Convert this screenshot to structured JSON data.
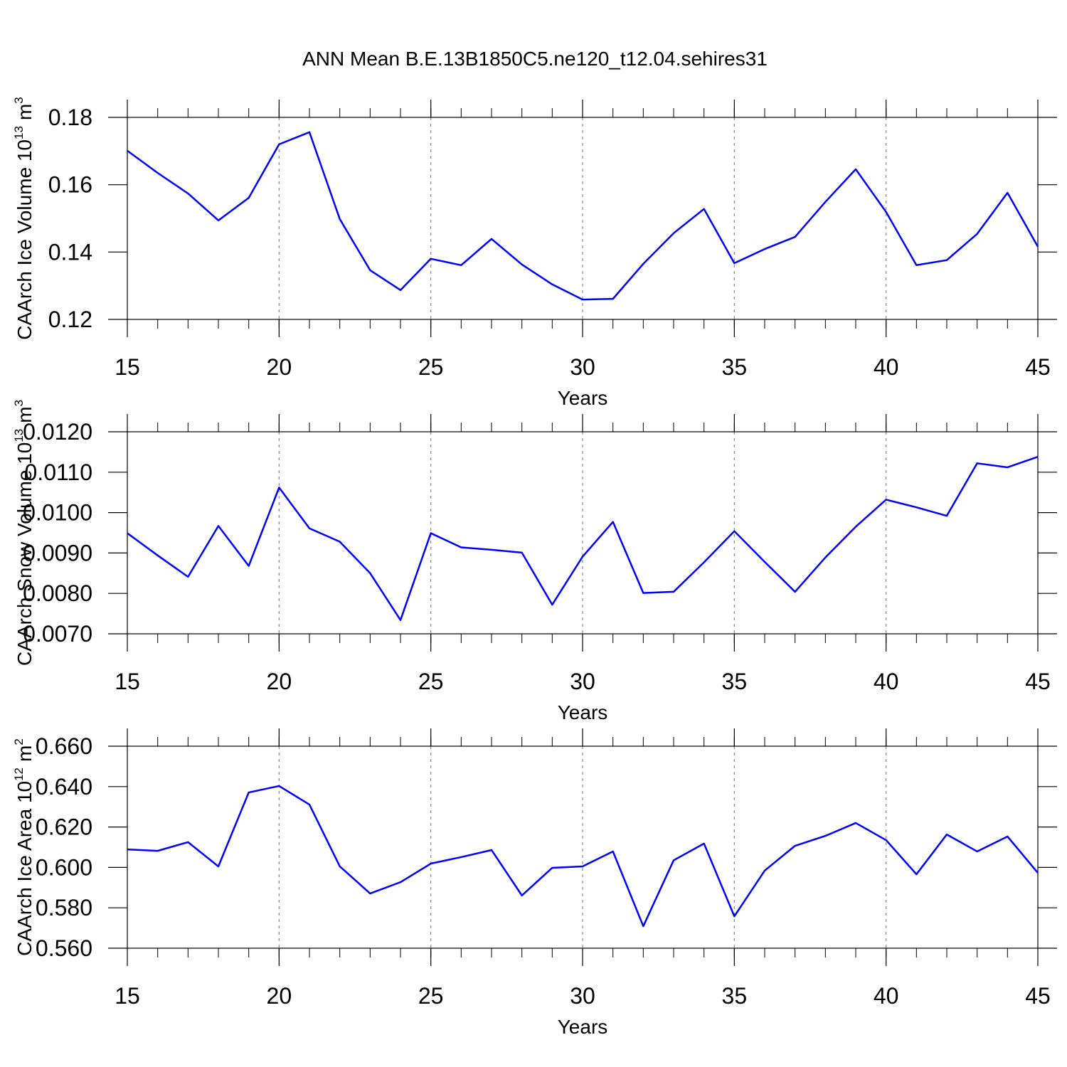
{
  "chart_data": [
    {
      "type": "line",
      "title": "ANN Mean B.E.13B1850C5.ne120_t12.04.sehires31",
      "ylabel": "CAArch Ice Volume 10",
      "ylabel_exp": "13",
      "ylabel_unit": "m",
      "ylabel_unit_exp": "3",
      "xlabel": "Years",
      "x": [
        15,
        16,
        17,
        18,
        19,
        20,
        21,
        22,
        23,
        24,
        25,
        26,
        27,
        28,
        29,
        30,
        31,
        32,
        33,
        34,
        35,
        36,
        37,
        38,
        39,
        40,
        41,
        42,
        43,
        44,
        45
      ],
      "series": [
        {
          "color": "#0000ff",
          "values": [
            0.1701,
            0.1635,
            0.1574,
            0.1494,
            0.1561,
            0.172,
            0.1756,
            0.1498,
            0.1346,
            0.1287,
            0.138,
            0.1361,
            0.1439,
            0.1363,
            0.1304,
            0.1259,
            0.1261,
            0.1365,
            0.1456,
            0.1528,
            0.1367,
            0.1409,
            0.1445,
            0.1549,
            0.1646,
            0.1519,
            0.1361,
            0.1376,
            0.1454,
            0.1576,
            0.1416
          ]
        }
      ],
      "xlim": [
        15,
        45
      ],
      "xticks": [
        15,
        20,
        25,
        30,
        35,
        40,
        45
      ],
      "ylim": [
        0.12,
        0.18
      ],
      "yticks": [
        0.12,
        0.14,
        0.16,
        0.18
      ],
      "grid": "x-dashed"
    },
    {
      "type": "line",
      "ylabel": "CAArch Snow Volume 10",
      "ylabel_exp": "13",
      "ylabel_unit": "m",
      "ylabel_unit_exp": "3",
      "xlabel": "Years",
      "x": [
        15,
        16,
        17,
        18,
        19,
        20,
        21,
        22,
        23,
        24,
        25,
        26,
        27,
        28,
        29,
        30,
        31,
        32,
        33,
        34,
        35,
        36,
        37,
        38,
        39,
        40,
        41,
        42,
        43,
        44,
        45
      ],
      "series": [
        {
          "color": "#0000ff",
          "values": [
            0.00949,
            0.00894,
            0.00841,
            0.00967,
            0.00868,
            0.01062,
            0.00961,
            0.00928,
            0.0085,
            0.00734,
            0.00949,
            0.00914,
            0.00908,
            0.00901,
            0.00772,
            0.00891,
            0.00977,
            0.00801,
            0.00804,
            0.00877,
            0.00954,
            0.00878,
            0.00804,
            0.00889,
            0.00965,
            0.01032,
            0.01013,
            0.00992,
            0.01122,
            0.01112,
            0.01138
          ]
        }
      ],
      "xlim": [
        15,
        45
      ],
      "xticks": [
        15,
        20,
        25,
        30,
        35,
        40,
        45
      ],
      "ylim": [
        0.007,
        0.012
      ],
      "yticks": [
        {
          "value": 0.007,
          "label": "0.0070"
        },
        {
          "value": 0.008,
          "label": "0.0080"
        },
        {
          "value": 0.009,
          "label": "0.0090"
        },
        {
          "value": 0.01,
          "label": "0.0100"
        },
        {
          "value": 0.011,
          "label": "0.0110"
        },
        {
          "value": 0.012,
          "label": "0.0120"
        }
      ],
      "grid": "x-dashed"
    },
    {
      "type": "line",
      "ylabel": "CAArch Ice Area 10",
      "ylabel_exp": "12",
      "ylabel_unit": "m",
      "ylabel_unit_exp": "2",
      "xlabel": "Years",
      "x": [
        15,
        16,
        17,
        18,
        19,
        20,
        21,
        22,
        23,
        24,
        25,
        26,
        27,
        28,
        29,
        30,
        31,
        32,
        33,
        34,
        35,
        36,
        37,
        38,
        39,
        40,
        41,
        42,
        43,
        44,
        45
      ],
      "series": [
        {
          "color": "#0000ff",
          "values": [
            0.6089,
            0.6082,
            0.6125,
            0.6005,
            0.6371,
            0.6403,
            0.6311,
            0.6005,
            0.5871,
            0.5927,
            0.6019,
            0.6051,
            0.6086,
            0.5861,
            0.5998,
            0.6005,
            0.6079,
            0.5709,
            0.6035,
            0.6118,
            0.5758,
            0.5984,
            0.6107,
            0.6156,
            0.622,
            0.6135,
            0.5966,
            0.6163,
            0.6079,
            0.6153,
            0.5973
          ]
        }
      ],
      "xlim": [
        15,
        45
      ],
      "xticks": [
        15,
        20,
        25,
        30,
        35,
        40,
        45
      ],
      "ylim": [
        0.56,
        0.66
      ],
      "yticks": [
        {
          "value": 0.56,
          "label": "0.560"
        },
        {
          "value": 0.58,
          "label": "0.580"
        },
        {
          "value": 0.6,
          "label": "0.600"
        },
        {
          "value": 0.62,
          "label": "0.620"
        },
        {
          "value": 0.64,
          "label": "0.640"
        },
        {
          "value": 0.66,
          "label": "0.660"
        }
      ],
      "grid": "x-dashed"
    }
  ]
}
